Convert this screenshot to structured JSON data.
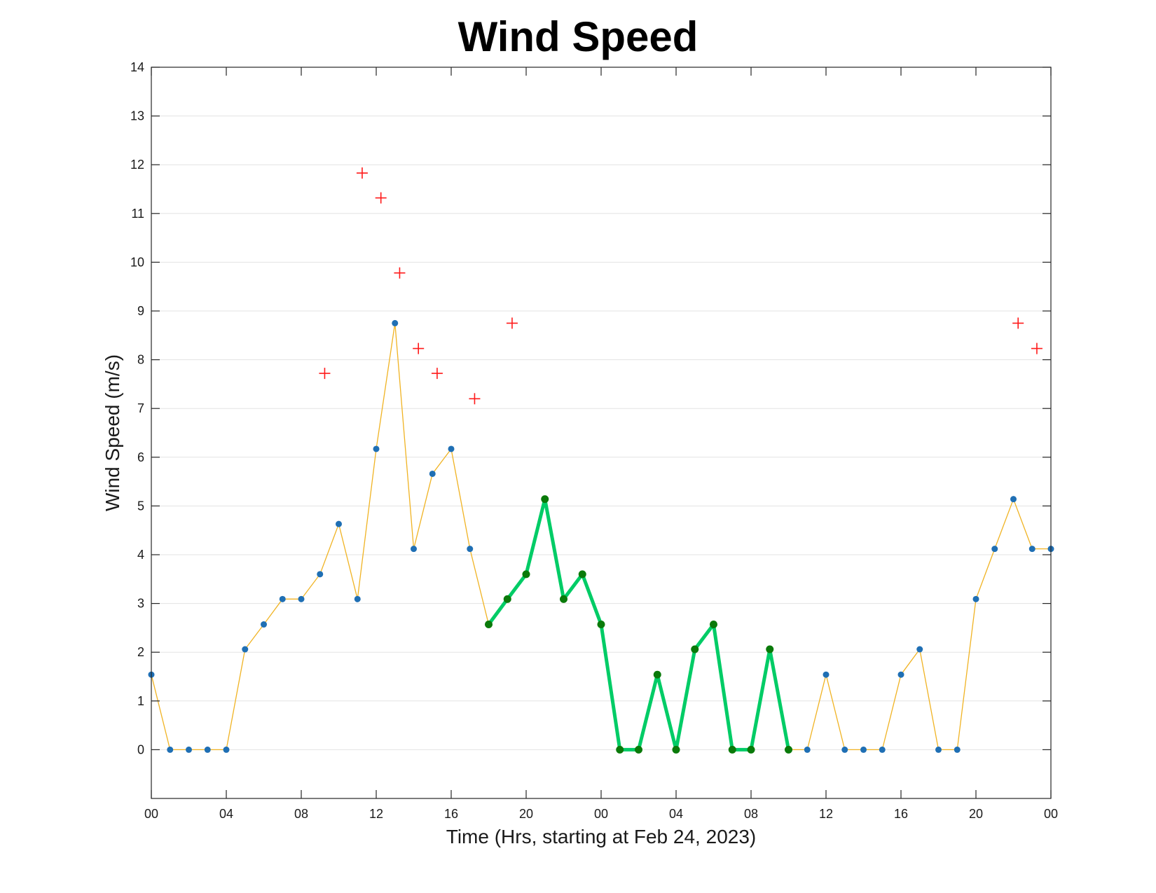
{
  "chart_data": {
    "type": "line",
    "title": "Wind Speed",
    "xlabel": "Time (Hrs, starting at Feb 24, 2023)",
    "ylabel": "Wind Speed (m/s)",
    "xlim": [
      0,
      48
    ],
    "ylim": [
      -1,
      14
    ],
    "x_ticks": [
      {
        "value": 0,
        "label": "00"
      },
      {
        "value": 4,
        "label": "04"
      },
      {
        "value": 8,
        "label": "08"
      },
      {
        "value": 12,
        "label": "12"
      },
      {
        "value": 16,
        "label": "16"
      },
      {
        "value": 20,
        "label": "20"
      },
      {
        "value": 24,
        "label": "00"
      },
      {
        "value": 28,
        "label": "04"
      },
      {
        "value": 32,
        "label": "08"
      },
      {
        "value": 36,
        "label": "12"
      },
      {
        "value": 40,
        "label": "16"
      },
      {
        "value": 44,
        "label": "20"
      },
      {
        "value": 48,
        "label": "00"
      }
    ],
    "y_ticks": [
      0,
      1,
      2,
      3,
      4,
      5,
      6,
      7,
      8,
      9,
      10,
      11,
      12,
      13,
      14
    ],
    "grid": "horizontal",
    "series": [
      {
        "style": "line-with-dots",
        "line_color": "#f0b323",
        "marker_color": "#1f6fb4",
        "x": [
          0,
          1,
          2,
          3,
          4,
          5,
          6,
          7,
          8,
          9,
          10,
          11,
          12,
          13,
          14,
          15,
          16,
          17,
          18,
          19,
          20,
          21,
          22,
          23,
          24,
          25,
          26,
          27,
          28,
          29,
          30,
          31,
          32,
          33,
          34,
          35,
          36,
          37,
          38,
          39,
          40,
          41,
          42,
          43,
          44,
          45,
          46,
          47,
          48
        ],
        "y": [
          1.54,
          0,
          0,
          0,
          0,
          2.06,
          2.57,
          3.09,
          3.09,
          3.6,
          4.63,
          3.09,
          6.17,
          8.75,
          4.12,
          5.66,
          6.17,
          4.12,
          2.57,
          3.09,
          3.6,
          5.14,
          3.09,
          3.6,
          2.57,
          0,
          0,
          1.54,
          0,
          2.06,
          2.57,
          0,
          0,
          2.06,
          0,
          0,
          1.54,
          0,
          0,
          0,
          1.54,
          2.06,
          0,
          0,
          3.09,
          4.12,
          5.14,
          4.12,
          4.12
        ]
      },
      {
        "style": "highlight-line",
        "line_color": "#00cc66",
        "marker_color": "#0a7a0a",
        "x": [
          18,
          19,
          20,
          21,
          22,
          23,
          24,
          25,
          26,
          27,
          28,
          29,
          30,
          31,
          32,
          33,
          34
        ],
        "y": [
          2.57,
          3.09,
          3.6,
          5.14,
          3.09,
          3.6,
          2.57,
          0,
          0,
          1.54,
          0,
          2.06,
          2.57,
          0,
          0,
          2.06,
          0
        ]
      },
      {
        "style": "plus-markers",
        "marker_color": "#ff1a1a",
        "x": [
          9.25,
          11.25,
          12.25,
          13.25,
          14.25,
          15.25,
          17.25,
          19.25,
          46.25,
          47.25
        ],
        "y": [
          7.72,
          11.83,
          11.32,
          9.78,
          8.23,
          7.72,
          7.2,
          8.75,
          8.75,
          8.23
        ]
      }
    ]
  }
}
